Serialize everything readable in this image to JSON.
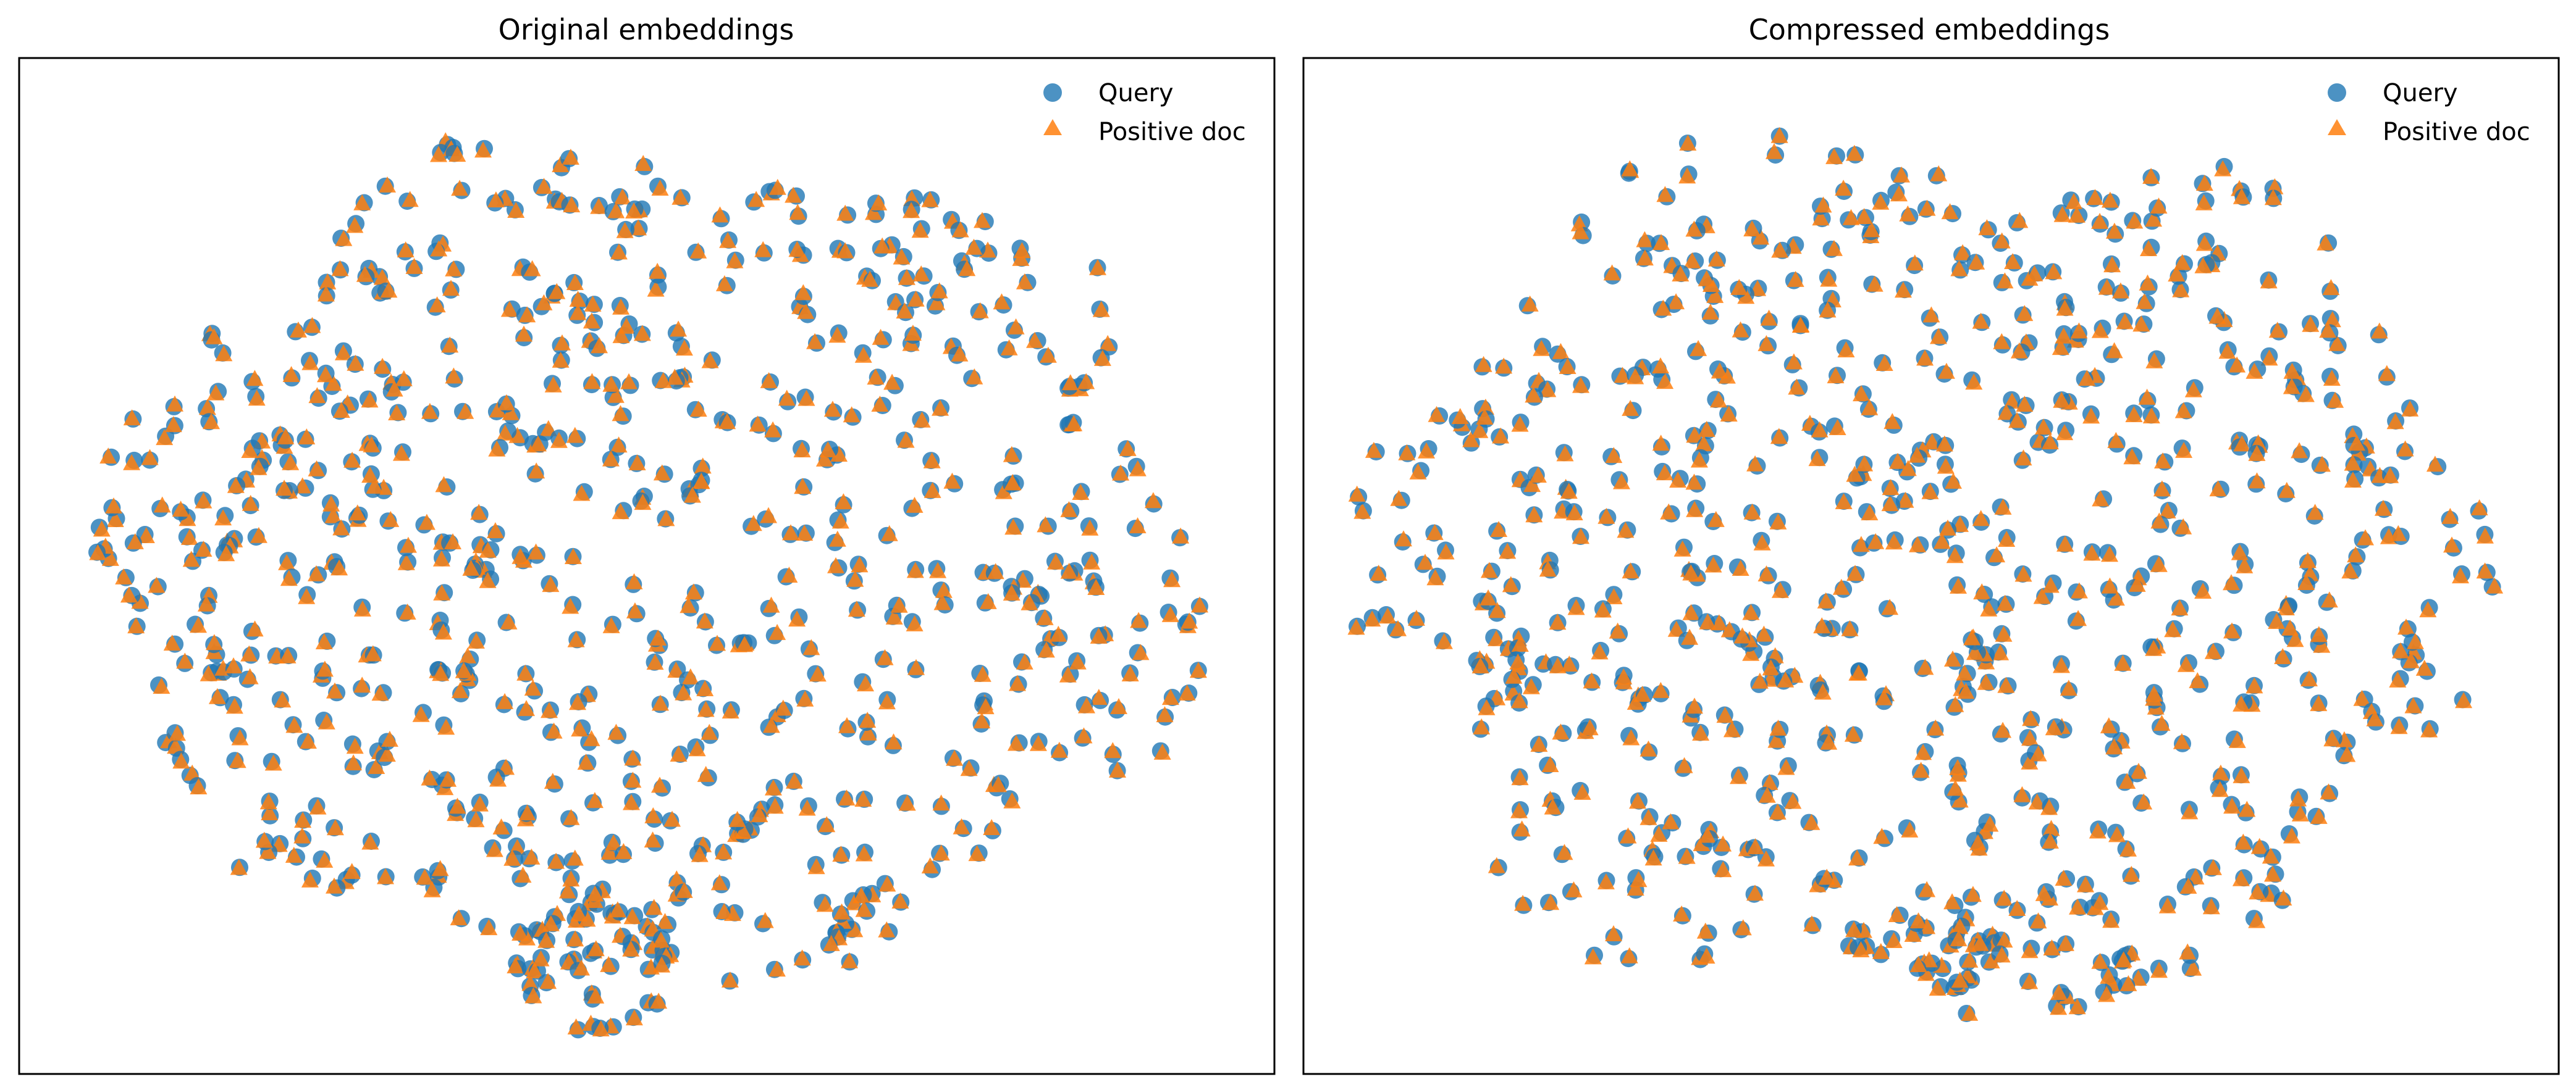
{
  "chart_data": [
    {
      "type": "scatter",
      "title": "Original embeddings",
      "xlabel": "",
      "ylabel": "",
      "axes_ticks": "none",
      "grid": false,
      "legend_position": "top-right",
      "series": [
        {
          "name": "Query",
          "marker": "circle",
          "color": "#1f77b4",
          "point_count": 700
        },
        {
          "name": "Positive doc",
          "marker": "triangle",
          "color": "#ff7f0e",
          "point_count": 700
        }
      ]
    },
    {
      "type": "scatter",
      "title": "Compressed embeddings",
      "xlabel": "",
      "ylabel": "",
      "axes_ticks": "none",
      "grid": false,
      "legend_position": "top-right",
      "series": [
        {
          "name": "Query",
          "marker": "circle",
          "color": "#1f77b4",
          "point_count": 700
        },
        {
          "name": "Positive doc",
          "marker": "triangle",
          "color": "#ff7f0e",
          "point_count": 700
        }
      ]
    }
  ]
}
